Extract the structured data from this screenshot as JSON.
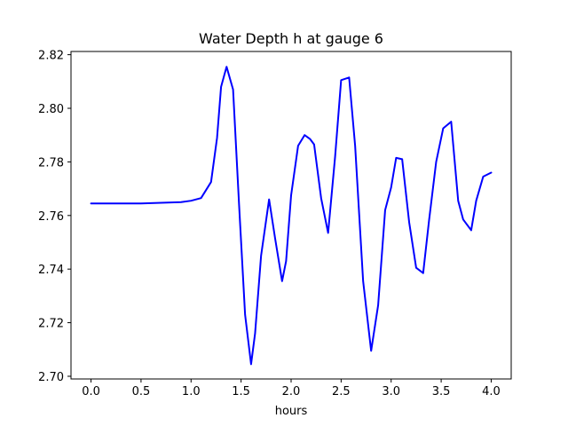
{
  "chart_data": {
    "type": "line",
    "title": "Water Depth h at gauge 6",
    "xlabel": "hours",
    "ylabel": "",
    "xlim": [
      -0.2,
      4.2
    ],
    "ylim": [
      2.699,
      2.8212
    ],
    "xticks": [
      0.0,
      0.5,
      1.0,
      1.5,
      2.0,
      2.5,
      3.0,
      3.5,
      4.0
    ],
    "xtick_labels": [
      "0.0",
      "0.5",
      "1.0",
      "1.5",
      "2.0",
      "2.5",
      "3.0",
      "3.5",
      "4.0"
    ],
    "yticks": [
      2.7,
      2.72,
      2.74,
      2.76,
      2.78,
      2.8,
      2.82
    ],
    "ytick_labels": [
      "2.70",
      "2.72",
      "2.74",
      "2.76",
      "2.78",
      "2.80",
      "2.82"
    ],
    "grid": false,
    "series": [
      {
        "color": "#0000ff",
        "x": [
          0.0,
          0.5,
          0.9,
          1.0,
          1.1,
          1.2,
          1.26,
          1.3,
          1.355,
          1.42,
          1.48,
          1.54,
          1.6,
          1.64,
          1.7,
          1.78,
          1.84,
          1.91,
          1.95,
          2.0,
          2.07,
          2.135,
          2.19,
          2.23,
          2.3,
          2.37,
          2.44,
          2.5,
          2.58,
          2.64,
          2.72,
          2.8,
          2.87,
          2.94,
          3.0,
          3.05,
          3.11,
          3.18,
          3.25,
          3.32,
          3.38,
          3.45,
          3.52,
          3.6,
          3.67,
          3.72,
          3.8,
          3.85,
          3.92,
          4.0
        ],
        "y": [
          2.7645,
          2.7645,
          2.765,
          2.7655,
          2.7665,
          2.7725,
          2.789,
          2.808,
          2.8155,
          2.807,
          2.764,
          2.723,
          2.7045,
          2.716,
          2.745,
          2.766,
          2.7515,
          2.7355,
          2.743,
          2.7675,
          2.786,
          2.79,
          2.7885,
          2.7865,
          2.7665,
          2.7535,
          2.782,
          2.8105,
          2.8115,
          2.786,
          2.7355,
          2.7095,
          2.7265,
          2.762,
          2.7705,
          2.7815,
          2.781,
          2.7575,
          2.7405,
          2.7385,
          2.7585,
          2.78,
          2.7925,
          2.795,
          2.7655,
          2.7585,
          2.7545,
          2.7655,
          2.7745,
          2.776
        ]
      }
    ]
  }
}
